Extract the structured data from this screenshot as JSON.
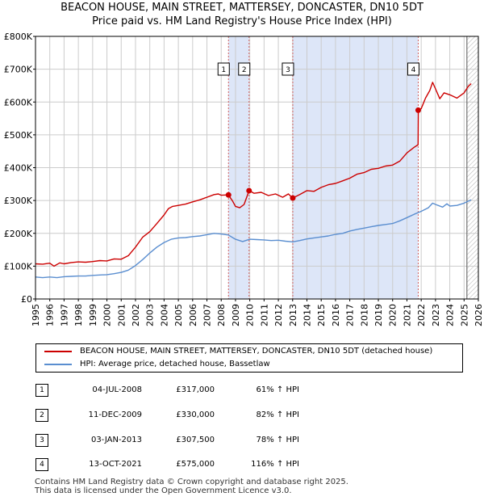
{
  "title_line1": "BEACON HOUSE, MAIN STREET, MATTERSEY, DONCASTER, DN10 5DT",
  "title_line2": "Price paid vs. HM Land Registry's House Price Index (HPI)",
  "colors": {
    "property": "#cc0000",
    "hpi": "#5a8ed0",
    "shade": "#dde6f8",
    "grid": "#cccccc",
    "marker_line": "#d06060"
  },
  "chart_data": {
    "type": "line",
    "title": "Price paid vs. HM Land Registry's House Price Index (HPI)",
    "xlim": [
      1995,
      2026
    ],
    "ylim": [
      0,
      800000
    ],
    "x_ticks": [
      1995,
      1996,
      1997,
      1998,
      1999,
      2000,
      2001,
      2002,
      2003,
      2004,
      2005,
      2006,
      2007,
      2008,
      2009,
      2010,
      2011,
      2012,
      2013,
      2014,
      2015,
      2016,
      2017,
      2018,
      2019,
      2020,
      2021,
      2022,
      2023,
      2024,
      2025,
      2026
    ],
    "y_ticks": [
      {
        "value": 0,
        "label": "£0"
      },
      {
        "value": 100000,
        "label": "£100K"
      },
      {
        "value": 200000,
        "label": "£200K"
      },
      {
        "value": 300000,
        "label": "£300K"
      },
      {
        "value": 400000,
        "label": "£400K"
      },
      {
        "value": 500000,
        "label": "£500K"
      },
      {
        "value": 600000,
        "label": "£600K"
      },
      {
        "value": 700000,
        "label": "£700K"
      },
      {
        "value": 800000,
        "label": "£800K"
      }
    ],
    "shaded_ranges": [
      [
        2008.5,
        2009.95
      ],
      [
        2013.0,
        2021.8
      ]
    ],
    "forecast_from": 2025.2,
    "series": [
      {
        "name": "BEACON HOUSE, MAIN STREET, MATTERSEY, DONCASTER, DN10 5DT (detached house)",
        "color": "#cc0000",
        "points": [
          [
            1995.0,
            107000
          ],
          [
            1995.5,
            106000
          ],
          [
            1996.0,
            109000
          ],
          [
            1996.3,
            100000
          ],
          [
            1996.7,
            110000
          ],
          [
            1997.0,
            107000
          ],
          [
            1997.5,
            111000
          ],
          [
            1998.0,
            113000
          ],
          [
            1998.5,
            112000
          ],
          [
            1999.0,
            114000
          ],
          [
            1999.5,
            117000
          ],
          [
            2000.0,
            116000
          ],
          [
            2000.5,
            122000
          ],
          [
            2001.0,
            121000
          ],
          [
            2001.5,
            132000
          ],
          [
            2002.0,
            158000
          ],
          [
            2002.5,
            188000
          ],
          [
            2003.0,
            205000
          ],
          [
            2003.5,
            230000
          ],
          [
            2004.0,
            256000
          ],
          [
            2004.3,
            275000
          ],
          [
            2004.6,
            282000
          ],
          [
            2005.0,
            285000
          ],
          [
            2005.5,
            289000
          ],
          [
            2006.0,
            296000
          ],
          [
            2006.5,
            302000
          ],
          [
            2007.0,
            310000
          ],
          [
            2007.5,
            318000
          ],
          [
            2007.8,
            320000
          ],
          [
            2008.0,
            316000
          ],
          [
            2008.5,
            317000
          ],
          [
            2008.8,
            298000
          ],
          [
            2009.0,
            282000
          ],
          [
            2009.3,
            278000
          ],
          [
            2009.6,
            288000
          ],
          [
            2009.95,
            330000
          ],
          [
            2010.3,
            322000
          ],
          [
            2010.8,
            325000
          ],
          [
            2011.3,
            315000
          ],
          [
            2011.8,
            320000
          ],
          [
            2012.3,
            310000
          ],
          [
            2012.7,
            320000
          ],
          [
            2013.0,
            307500
          ],
          [
            2013.5,
            318000
          ],
          [
            2014.0,
            330000
          ],
          [
            2014.5,
            328000
          ],
          [
            2015.0,
            340000
          ],
          [
            2015.5,
            348000
          ],
          [
            2016.0,
            352000
          ],
          [
            2016.5,
            360000
          ],
          [
            2017.0,
            368000
          ],
          [
            2017.5,
            380000
          ],
          [
            2018.0,
            385000
          ],
          [
            2018.5,
            395000
          ],
          [
            2019.0,
            398000
          ],
          [
            2019.5,
            405000
          ],
          [
            2020.0,
            408000
          ],
          [
            2020.5,
            420000
          ],
          [
            2021.0,
            445000
          ],
          [
            2021.5,
            462000
          ],
          [
            2021.78,
            470000
          ],
          [
            2021.8,
            575000
          ],
          [
            2022.0,
            580000
          ],
          [
            2022.3,
            612000
          ],
          [
            2022.6,
            635000
          ],
          [
            2022.8,
            660000
          ],
          [
            2023.0,
            640000
          ],
          [
            2023.3,
            610000
          ],
          [
            2023.6,
            628000
          ],
          [
            2024.0,
            622000
          ],
          [
            2024.5,
            612000
          ],
          [
            2025.0,
            628000
          ],
          [
            2025.3,
            648000
          ],
          [
            2025.5,
            656000
          ]
        ]
      },
      {
        "name": "HPI: Average price, detached house, Bassetlaw",
        "color": "#5a8ed0",
        "points": [
          [
            1995.0,
            67000
          ],
          [
            1995.5,
            65000
          ],
          [
            1996.0,
            67000
          ],
          [
            1996.5,
            65000
          ],
          [
            1997.0,
            68000
          ],
          [
            1997.5,
            69000
          ],
          [
            1998.0,
            70000
          ],
          [
            1998.5,
            70000
          ],
          [
            1999.0,
            72000
          ],
          [
            1999.5,
            73000
          ],
          [
            2000.0,
            74000
          ],
          [
            2000.5,
            77000
          ],
          [
            2001.0,
            81000
          ],
          [
            2001.5,
            88000
          ],
          [
            2002.0,
            102000
          ],
          [
            2002.5,
            120000
          ],
          [
            2003.0,
            140000
          ],
          [
            2003.5,
            158000
          ],
          [
            2004.0,
            172000
          ],
          [
            2004.5,
            182000
          ],
          [
            2005.0,
            186000
          ],
          [
            2005.5,
            187000
          ],
          [
            2006.0,
            190000
          ],
          [
            2006.5,
            192000
          ],
          [
            2007.0,
            196000
          ],
          [
            2007.5,
            200000
          ],
          [
            2008.0,
            198000
          ],
          [
            2008.5,
            195000
          ],
          [
            2009.0,
            182000
          ],
          [
            2009.5,
            175000
          ],
          [
            2010.0,
            182000
          ],
          [
            2010.5,
            181000
          ],
          [
            2011.0,
            180000
          ],
          [
            2011.5,
            178000
          ],
          [
            2012.0,
            179000
          ],
          [
            2012.5,
            176000
          ],
          [
            2013.0,
            174000
          ],
          [
            2013.5,
            178000
          ],
          [
            2014.0,
            183000
          ],
          [
            2014.5,
            186000
          ],
          [
            2015.0,
            189000
          ],
          [
            2015.5,
            192000
          ],
          [
            2016.0,
            197000
          ],
          [
            2016.5,
            200000
          ],
          [
            2017.0,
            207000
          ],
          [
            2017.5,
            212000
          ],
          [
            2018.0,
            216000
          ],
          [
            2018.5,
            220000
          ],
          [
            2019.0,
            224000
          ],
          [
            2019.5,
            227000
          ],
          [
            2020.0,
            230000
          ],
          [
            2020.5,
            238000
          ],
          [
            2021.0,
            248000
          ],
          [
            2021.5,
            258000
          ],
          [
            2022.0,
            267000
          ],
          [
            2022.5,
            278000
          ],
          [
            2022.8,
            292000
          ],
          [
            2023.0,
            288000
          ],
          [
            2023.5,
            280000
          ],
          [
            2023.8,
            290000
          ],
          [
            2024.0,
            283000
          ],
          [
            2024.5,
            285000
          ],
          [
            2025.0,
            292000
          ],
          [
            2025.5,
            302000
          ]
        ]
      }
    ],
    "sales": [
      {
        "label": "1",
        "x": 2008.51,
        "price": 317000
      },
      {
        "label": "2",
        "x": 2009.95,
        "price": 330000
      },
      {
        "label": "3",
        "x": 2013.01,
        "price": 307500
      },
      {
        "label": "4",
        "x": 2021.79,
        "price": 575000
      }
    ]
  },
  "legend": {
    "property_label": "BEACON HOUSE, MAIN STREET, MATTERSEY, DONCASTER, DN10 5DT (detached house)",
    "hpi_label": "HPI: Average price, detached house, Bassetlaw"
  },
  "sales_table": [
    {
      "num": "1",
      "date": "04-JUL-2008",
      "price": "£317,000",
      "hpi": "61% ↑ HPI"
    },
    {
      "num": "2",
      "date": "11-DEC-2009",
      "price": "£330,000",
      "hpi": "82% ↑ HPI"
    },
    {
      "num": "3",
      "date": "03-JAN-2013",
      "price": "£307,500",
      "hpi": "78% ↑ HPI"
    },
    {
      "num": "4",
      "date": "13-OCT-2021",
      "price": "£575,000",
      "hpi": "116% ↑ HPI"
    }
  ],
  "footer_line1": "Contains HM Land Registry data © Crown copyright and database right 2025.",
  "footer_line2": "This data is licensed under the Open Government Licence v3.0."
}
